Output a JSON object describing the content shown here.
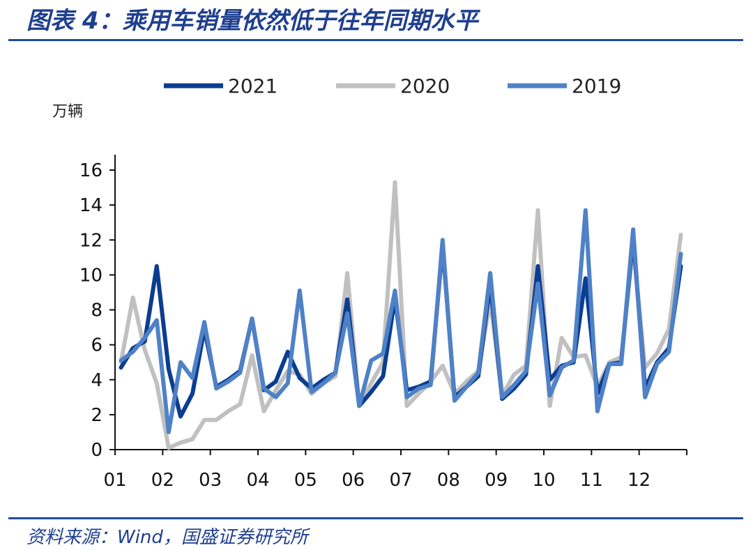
{
  "header": {
    "title": "图表 4：乘用车销量依然低于往年同期水平"
  },
  "footer": {
    "source": "资料来源：Wind，国盛证券研究所"
  },
  "chart_data": {
    "type": "line",
    "ylabel": "万辆",
    "ylim": [
      0,
      16
    ],
    "yticks": [
      0,
      2,
      4,
      6,
      8,
      10,
      12,
      14,
      16
    ],
    "xticks": [
      "01",
      "02",
      "03",
      "04",
      "05",
      "06",
      "07",
      "08",
      "09",
      "10",
      "11",
      "12"
    ],
    "legend_position": "top",
    "series": [
      {
        "name": "2021",
        "color": "#0b3d91",
        "values": [
          4.7,
          5.8,
          6.2,
          10.5,
          4.6,
          1.9,
          3.2,
          6.9,
          3.6,
          4.0,
          4.5,
          7.5,
          3.4,
          3.9,
          5.6,
          4.1,
          3.5,
          4.0,
          4.4,
          8.6,
          2.5,
          3.3,
          4.2,
          8.7,
          3.4,
          3.6,
          3.9,
          11.7,
          3.0,
          3.6,
          4.2,
          9.5,
          2.9,
          3.5,
          4.3,
          10.5,
          4.0,
          4.8,
          5.0,
          9.8,
          3.2,
          4.9,
          5.0,
          12.2,
          3.5,
          5.0,
          5.8,
          10.5
        ]
      },
      {
        "name": "2020",
        "color": "#c0c0c0",
        "values": [
          5.0,
          8.7,
          5.7,
          3.8,
          0.1,
          0.4,
          0.6,
          1.7,
          1.7,
          2.2,
          2.6,
          5.4,
          2.2,
          3.4,
          4.5,
          4.3,
          3.2,
          3.8,
          4.2,
          10.1,
          2.5,
          3.8,
          5.0,
          15.3,
          2.5,
          3.2,
          3.9,
          4.8,
          3.2,
          3.9,
          4.5,
          8.5,
          3.1,
          4.3,
          4.8,
          13.7,
          2.5,
          6.4,
          5.3,
          5.4,
          3.6,
          5.0,
          5.3,
          11.7,
          4.7,
          5.5,
          6.9,
          12.3
        ]
      },
      {
        "name": "2019",
        "color": "#4f81c7",
        "values": [
          5.1,
          5.6,
          6.4,
          7.4,
          1.0,
          5.0,
          4.1,
          7.3,
          3.5,
          3.9,
          4.4,
          7.5,
          3.5,
          3.0,
          3.8,
          9.1,
          3.3,
          3.8,
          4.4,
          7.8,
          2.5,
          5.1,
          5.5,
          9.1,
          3.0,
          3.5,
          3.7,
          12.0,
          2.8,
          3.6,
          4.4,
          10.1,
          3.0,
          3.7,
          4.5,
          9.5,
          3.1,
          4.7,
          5.1,
          13.7,
          2.2,
          4.9,
          4.9,
          12.6,
          3.0,
          4.9,
          5.6,
          11.2
        ]
      }
    ]
  }
}
